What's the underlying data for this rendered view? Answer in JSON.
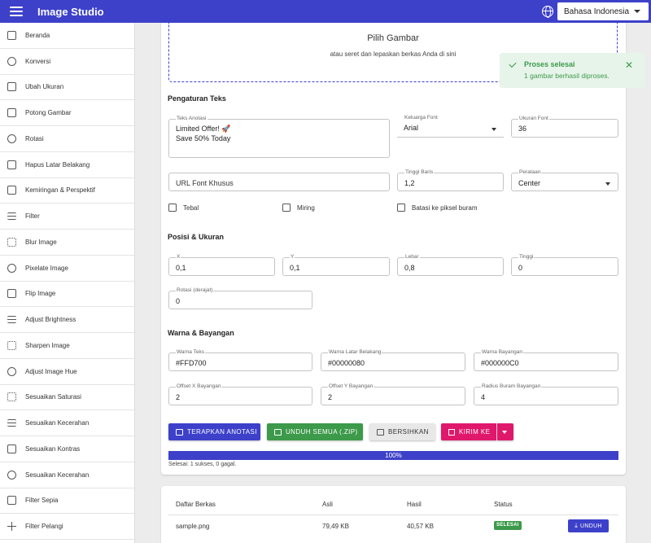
{
  "app": {
    "title": "Image Studio"
  },
  "language": {
    "selected": "Bahasa Indonesia"
  },
  "sidebar": {
    "items": [
      {
        "label": "Beranda",
        "icon": "home-icon"
      },
      {
        "label": "Konversi",
        "icon": "convert-icon"
      },
      {
        "label": "Ubah Ukuran",
        "icon": "resize-icon"
      },
      {
        "label": "Potong Gambar",
        "icon": "crop-icon"
      },
      {
        "label": "Rotasi",
        "icon": "rotate-icon"
      },
      {
        "label": "Hapus Latar Belakang",
        "icon": "remove-background-icon"
      },
      {
        "label": "Kemiringan & Perspektif",
        "icon": "perspective-icon"
      },
      {
        "label": "Filter",
        "icon": "filter-icon"
      },
      {
        "label": "Blur Image",
        "icon": "blur-icon"
      },
      {
        "label": "Pixelate Image",
        "icon": "pixelate-icon"
      },
      {
        "label": "Flip Image",
        "icon": "flip-icon"
      },
      {
        "label": "Adjust Brightness",
        "icon": "brightness-icon"
      },
      {
        "label": "Sharpen Image",
        "icon": "sharpen-icon"
      },
      {
        "label": "Adjust Image Hue",
        "icon": "palette-icon"
      },
      {
        "label": "Sesuaikan Saturasi",
        "icon": "saturation-icon"
      },
      {
        "label": "Sesuaikan Kecerahan",
        "icon": "brightness-icon"
      },
      {
        "label": "Sesuaikan Kontras",
        "icon": "contrast-icon"
      },
      {
        "label": "Sesuaikan Kecerahan",
        "icon": "exposure-icon"
      },
      {
        "label": "Filter Sepia",
        "icon": "sepia-icon"
      },
      {
        "label": "Filter Pelangi",
        "icon": "plus-icon"
      }
    ]
  },
  "dropzone": {
    "title": "Pilih Gambar",
    "hint": "atau seret dan lepaskan berkas Anda di sini"
  },
  "text_settings": {
    "heading": "Pengaturan Teks",
    "annotation": {
      "label": "Teks Anotasi",
      "value": "Limited Offer! 🚀\nSave 50% Today"
    },
    "font_family": {
      "label": "Keluarga Font",
      "value": "Arial"
    },
    "font_size": {
      "label": "Ukuran Font",
      "value": "36"
    },
    "custom_font_url": {
      "placeholder": "URL Font Khusus"
    },
    "line_height": {
      "label": "Tinggi Baris",
      "value": "1,2"
    },
    "alignment": {
      "label": "Perataan",
      "value": "Center"
    },
    "bold": {
      "label": "Tebal"
    },
    "italic": {
      "label": "Miring"
    },
    "clip_blur": {
      "label": "Batasi ke piksel buram"
    }
  },
  "position_size": {
    "heading": "Posisi & Ukuran",
    "x": {
      "label": "X",
      "value": "0,1"
    },
    "y": {
      "label": "Y",
      "value": "0,1"
    },
    "width": {
      "label": "Lebar",
      "value": "0,8"
    },
    "height": {
      "label": "Tinggi",
      "value": "0"
    },
    "rotation": {
      "label": "Rotasi (derajat)",
      "value": "0"
    }
  },
  "color_shadow": {
    "heading": "Warna & Bayangan",
    "text_color": {
      "label": "Warna Teks",
      "value": "#FFD700"
    },
    "bg_color": {
      "label": "Warna Latar Belakang",
      "value": "#00000080"
    },
    "shadow_color": {
      "label": "Warna Bayangan",
      "value": "#000000C0"
    },
    "shadow_x": {
      "label": "Offset X Bayangan",
      "value": "2"
    },
    "shadow_y": {
      "label": "Offset Y Bayangan",
      "value": "2"
    },
    "shadow_blur": {
      "label": "Radius Buram Bayangan",
      "value": "4"
    }
  },
  "actions": {
    "apply": "TERAPKAN ANOTASI",
    "download_all": "UNDUH SEMUA (.ZIP)",
    "clear": "BERSIHKAN",
    "send": "KIRIM KE"
  },
  "colors": {
    "primary": "#3d41c9",
    "success": "#3c9a4a",
    "clear_bg": "#e8e8e8",
    "send": "#e0186c"
  },
  "progress": {
    "percent": 100,
    "text": "100%",
    "summary": "Selesai: 1 sukses, 0 gagal."
  },
  "toast": {
    "title": "Proses selesai",
    "message": "1 gambar berhasil diproses."
  },
  "files": {
    "headers": [
      "Daftar Berkas",
      "Asli",
      "Hasil",
      "Status"
    ],
    "rows": [
      {
        "name": "sample.png",
        "original": "79,49 KB",
        "result": "40,57 KB",
        "status": "SELESAI",
        "action": "UNDUH"
      }
    ]
  }
}
